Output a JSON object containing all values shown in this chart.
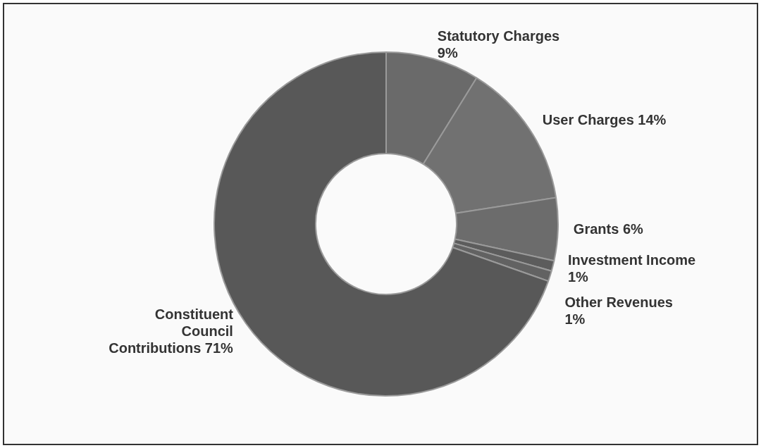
{
  "chart_data": {
    "type": "donut",
    "categories": [
      "Statutory Charges",
      "User Charges",
      "Grants",
      "Investment Income",
      "Other Revenues",
      "Constituent Council Contributions"
    ],
    "values": [
      9,
      14,
      6,
      1,
      1,
      71
    ],
    "value_labels": [
      "9%",
      "14%",
      "6%",
      "1%",
      "1%",
      "71%"
    ],
    "colors": [
      "#6a6a6a",
      "#717171",
      "#6c6c6c",
      "#5c5c5c",
      "#626262",
      "#585858"
    ],
    "legend": false
  }
}
